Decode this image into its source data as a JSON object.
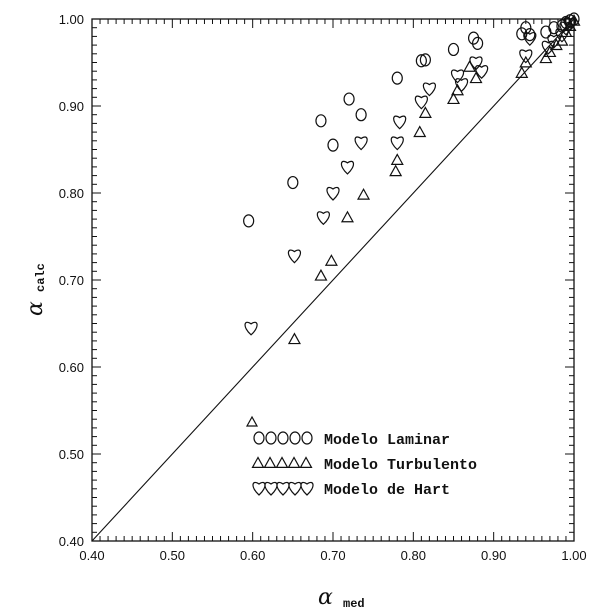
{
  "chart_data": {
    "type": "scatter",
    "xlabel_symbol": "α",
    "xlabel_subscript": "med",
    "ylabel_symbol": "α",
    "ylabel_subscript": "calc",
    "xlim": [
      0.4,
      1.0
    ],
    "ylim": [
      0.4,
      1.0
    ],
    "xticks": [
      "0.40",
      "0.50",
      "0.60",
      "0.70",
      "0.80",
      "0.90",
      "1.00"
    ],
    "yticks": [
      "0.40",
      "0.50",
      "0.60",
      "0.70",
      "0.80",
      "0.90",
      "1.00"
    ],
    "reference_line": "y = x",
    "grid": false,
    "legend_position": "bottom-right",
    "series": [
      {
        "name": "Modelo Laminar",
        "marker": "circle",
        "points": [
          [
            0.595,
            0.768
          ],
          [
            0.65,
            0.812
          ],
          [
            0.685,
            0.883
          ],
          [
            0.7,
            0.855
          ],
          [
            0.72,
            0.908
          ],
          [
            0.735,
            0.89
          ],
          [
            0.78,
            0.932
          ],
          [
            0.81,
            0.952
          ],
          [
            0.815,
            0.953
          ],
          [
            0.85,
            0.965
          ],
          [
            0.875,
            0.978
          ],
          [
            0.88,
            0.972
          ],
          [
            0.935,
            0.983
          ],
          [
            0.94,
            0.99
          ],
          [
            0.945,
            0.982
          ],
          [
            0.965,
            0.985
          ],
          [
            0.975,
            0.99
          ],
          [
            0.985,
            0.992
          ],
          [
            0.99,
            0.996
          ],
          [
            0.995,
            0.998
          ],
          [
            1.0,
            1.0
          ]
        ]
      },
      {
        "name": "Modelo Turbulento",
        "marker": "triangle",
        "points": [
          [
            0.652,
            0.632
          ],
          [
            0.685,
            0.705
          ],
          [
            0.698,
            0.722
          ],
          [
            0.718,
            0.772
          ],
          [
            0.738,
            0.798
          ],
          [
            0.778,
            0.825
          ],
          [
            0.78,
            0.838
          ],
          [
            0.808,
            0.87
          ],
          [
            0.815,
            0.892
          ],
          [
            0.85,
            0.908
          ],
          [
            0.855,
            0.918
          ],
          [
            0.87,
            0.945
          ],
          [
            0.878,
            0.932
          ],
          [
            0.935,
            0.938
          ],
          [
            0.94,
            0.95
          ],
          [
            0.965,
            0.955
          ],
          [
            0.97,
            0.962
          ],
          [
            0.978,
            0.97
          ],
          [
            0.985,
            0.975
          ],
          [
            0.99,
            0.985
          ],
          [
            0.995,
            0.992
          ],
          [
            1.0,
            0.998
          ]
        ]
      },
      {
        "name": "Modelo de Hart",
        "marker": "heart",
        "points": [
          [
            0.598,
            0.645
          ],
          [
            0.652,
            0.728
          ],
          [
            0.688,
            0.772
          ],
          [
            0.7,
            0.8
          ],
          [
            0.718,
            0.83
          ],
          [
            0.735,
            0.858
          ],
          [
            0.78,
            0.858
          ],
          [
            0.783,
            0.882
          ],
          [
            0.81,
            0.905
          ],
          [
            0.82,
            0.92
          ],
          [
            0.855,
            0.935
          ],
          [
            0.86,
            0.925
          ],
          [
            0.878,
            0.95
          ],
          [
            0.885,
            0.94
          ],
          [
            0.94,
            0.958
          ],
          [
            0.945,
            0.978
          ],
          [
            0.968,
            0.968
          ],
          [
            0.975,
            0.975
          ],
          [
            0.985,
            0.982
          ],
          [
            0.99,
            0.99
          ],
          [
            0.995,
            0.995
          ]
        ]
      }
    ]
  }
}
